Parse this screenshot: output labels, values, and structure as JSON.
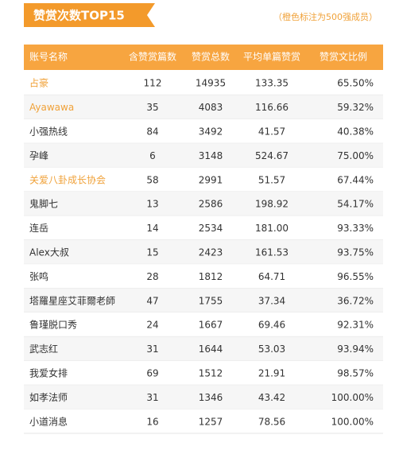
{
  "header": {
    "title": "赞赏次数TOP15",
    "note": "（橙色标注为500强成员）"
  },
  "highlight_color": "#f0a23a",
  "table": {
    "columns": [
      "账号名称",
      "含赞赏篇数",
      "赞赏总数",
      "平均单篇赞赏",
      "赞赏文比例"
    ],
    "rows": [
      {
        "cells": [
          "占豪",
          "112",
          "14935",
          "133.35",
          "65.50%"
        ],
        "highlight": true
      },
      {
        "cells": [
          "Ayawawa",
          "35",
          "4083",
          "116.66",
          "59.32%"
        ],
        "highlight": true
      },
      {
        "cells": [
          "小强热线",
          "84",
          "3492",
          "41.57",
          "40.38%"
        ],
        "highlight": false
      },
      {
        "cells": [
          "孕峰",
          "6",
          "3148",
          "524.67",
          "75.00%"
        ],
        "highlight": false
      },
      {
        "cells": [
          "关爱八卦成长协会",
          "58",
          "2991",
          "51.57",
          "67.44%"
        ],
        "highlight": true
      },
      {
        "cells": [
          "鬼脚七",
          "13",
          "2586",
          "198.92",
          "54.17%"
        ],
        "highlight": false
      },
      {
        "cells": [
          "连岳",
          "14",
          "2534",
          "181.00",
          "93.33%"
        ],
        "highlight": false
      },
      {
        "cells": [
          "Alex大叔",
          "15",
          "2423",
          "161.53",
          "93.75%"
        ],
        "highlight": false
      },
      {
        "cells": [
          "张鸣",
          "28",
          "1812",
          "64.71",
          "96.55%"
        ],
        "highlight": false
      },
      {
        "cells": [
          "塔羅星座艾菲爾老師",
          "47",
          "1755",
          "37.34",
          "36.72%"
        ],
        "highlight": false
      },
      {
        "cells": [
          "鲁瑾脱口秀",
          "24",
          "1667",
          "69.46",
          "92.31%"
        ],
        "highlight": false
      },
      {
        "cells": [
          "武志红",
          "31",
          "1644",
          "53.03",
          "93.94%"
        ],
        "highlight": false
      },
      {
        "cells": [
          "我爱女排",
          "69",
          "1512",
          "21.91",
          "98.57%"
        ],
        "highlight": false
      },
      {
        "cells": [
          "如孝法师",
          "31",
          "1346",
          "43.42",
          "100.00%"
        ],
        "highlight": false
      },
      {
        "cells": [
          "小道消息",
          "16",
          "1257",
          "78.56",
          "100.00%"
        ],
        "highlight": false
      }
    ]
  }
}
